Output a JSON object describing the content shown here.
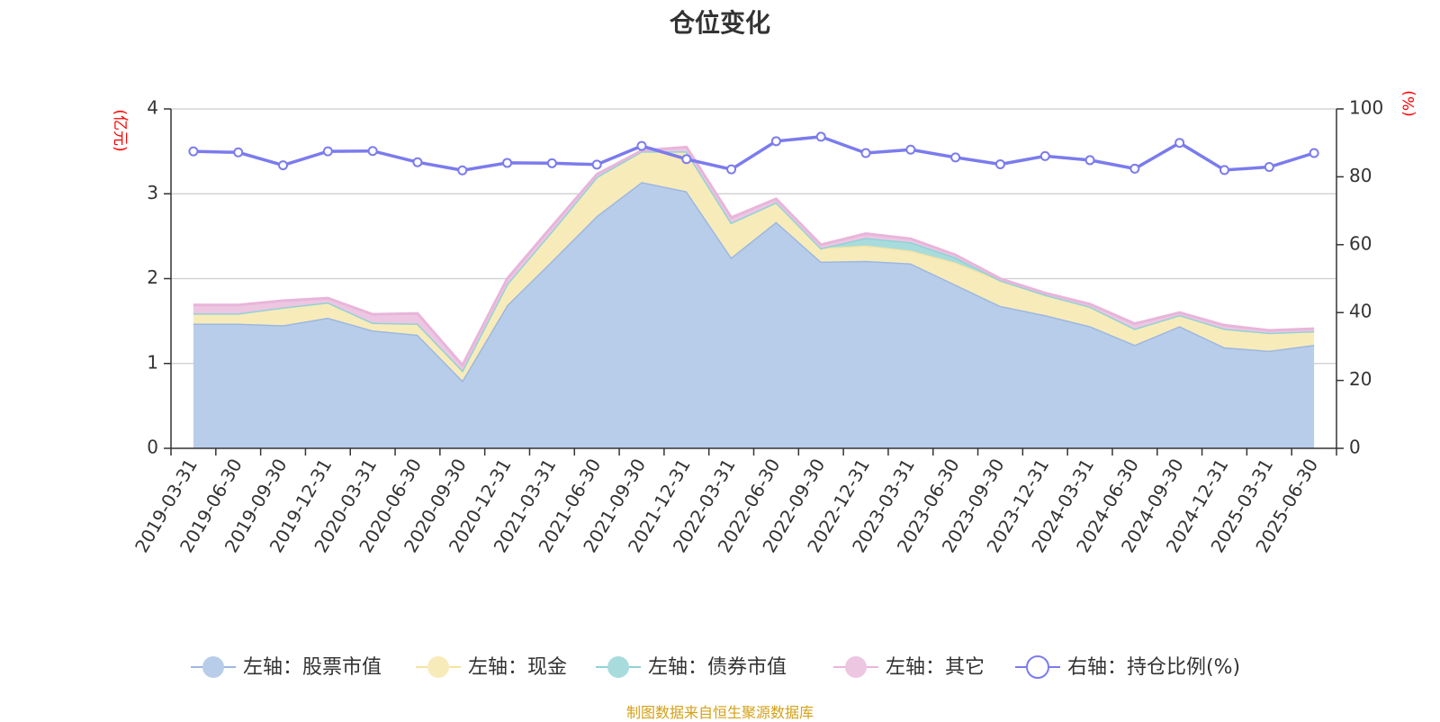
{
  "chart_data": {
    "type": "area",
    "title": "仓位变化",
    "left_axis_unit": "(亿元)",
    "right_axis_unit": "(%)",
    "left_ylim": [
      0,
      4
    ],
    "left_ticks": [
      0,
      1,
      2,
      3,
      4
    ],
    "right_ylim": [
      0,
      100
    ],
    "right_ticks": [
      0,
      20,
      40,
      60,
      80,
      100
    ],
    "grid": true,
    "legend_position": "bottom",
    "categories": [
      "2019-03-31",
      "2019-06-30",
      "2019-09-30",
      "2019-12-31",
      "2020-03-31",
      "2020-06-30",
      "2020-09-30",
      "2020-12-31",
      "2021-03-31",
      "2021-06-30",
      "2021-09-30",
      "2021-12-31",
      "2022-03-31",
      "2022-06-30",
      "2022-09-30",
      "2022-12-31",
      "2023-03-31",
      "2023-06-30",
      "2023-09-30",
      "2023-12-31",
      "2024-03-31",
      "2024-06-30",
      "2024-09-30",
      "2024-12-31",
      "2025-03-31",
      "2025-06-30"
    ],
    "series": [
      {
        "name": "左轴：股票市值",
        "axis": "left",
        "kind": "stacked-area",
        "color": "#9cb8e0",
        "fill": "#b8cdea",
        "values": [
          1.47,
          1.47,
          1.45,
          1.54,
          1.39,
          1.34,
          0.8,
          1.69,
          2.21,
          2.74,
          3.14,
          3.03,
          2.25,
          2.67,
          2.2,
          2.21,
          2.18,
          1.93,
          1.68,
          1.57,
          1.44,
          1.22,
          1.44,
          1.19,
          1.15,
          1.22
        ]
      },
      {
        "name": "左轴：现金",
        "axis": "left",
        "kind": "stacked-area",
        "color": "#f6e3a2",
        "fill": "#f8ebba",
        "values": [
          0.12,
          0.12,
          0.21,
          0.18,
          0.09,
          0.13,
          0.12,
          0.25,
          0.35,
          0.46,
          0.36,
          0.47,
          0.41,
          0.23,
          0.16,
          0.18,
          0.15,
          0.26,
          0.3,
          0.24,
          0.23,
          0.19,
          0.13,
          0.22,
          0.21,
          0.16
        ]
      },
      {
        "name": "左轴：债券市值",
        "axis": "left",
        "kind": "stacked-area",
        "color": "#8fd3d6",
        "fill": "#a8dcdc",
        "values": [
          0,
          0,
          0,
          0,
          0,
          0,
          0,
          0,
          0,
          0,
          0,
          0,
          0,
          0,
          0,
          0.09,
          0.1,
          0.06,
          0,
          0,
          0,
          0,
          0,
          0,
          0,
          0
        ]
      },
      {
        "name": "左轴：其它",
        "axis": "left",
        "kind": "stacked-area",
        "color": "#e8b5da",
        "fill": "#edc6e2",
        "values": [
          0.1,
          0.1,
          0.08,
          0.05,
          0.1,
          0.12,
          0.06,
          0.06,
          0.06,
          0.03,
          0.01,
          0.05,
          0.06,
          0.04,
          0.04,
          0.05,
          0.04,
          0.03,
          0.02,
          0.02,
          0.03,
          0.06,
          0.03,
          0.04,
          0.03,
          0.03
        ]
      },
      {
        "name": "右轴：持仓比例(%)",
        "axis": "right",
        "kind": "line",
        "color": "#7b7bee",
        "values": [
          87.5,
          87.2,
          83.4,
          87.5,
          87.6,
          84.3,
          81.9,
          84.1,
          84.0,
          83.6,
          89.1,
          85.2,
          82.2,
          90.5,
          91.8,
          87.0,
          88.0,
          85.7,
          83.7,
          86.1,
          84.9,
          82.4,
          90.0,
          82.0,
          82.9,
          87.0
        ]
      }
    ]
  },
  "source_note": "制图数据来自恒生聚源数据库"
}
